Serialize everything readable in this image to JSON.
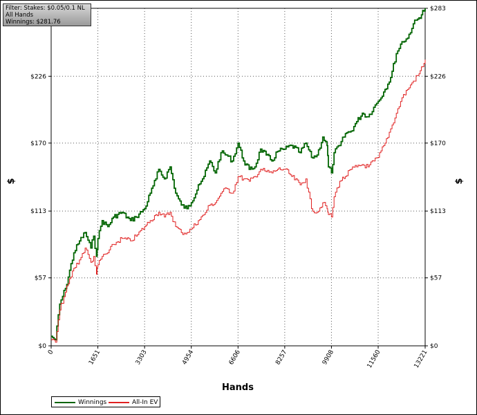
{
  "filter_box": {
    "line1": "Filter: Stakes: $0.05/0.1 NL",
    "line2": "All Hands",
    "line3": "Winnings: $281.76"
  },
  "chart_data": {
    "type": "line",
    "xlabel": "Hands",
    "ylabel": "$",
    "xlim": [
      0,
      13221
    ],
    "ylim": [
      0,
      283
    ],
    "x_ticks": [
      0,
      1651,
      3303,
      4954,
      6606,
      8257,
      9908,
      11560,
      13221
    ],
    "x_tick_labels": [
      "0",
      "1651",
      "3303",
      "4954",
      "6606",
      "8257",
      "9908",
      "11560",
      "13221"
    ],
    "y_ticks": [
      0,
      57,
      113,
      170,
      226,
      283
    ],
    "y_tick_labels": [
      "$0",
      "$57",
      "$113",
      "$170",
      "$226",
      "$283"
    ],
    "grid": true,
    "legend_position": "bottom-left",
    "series": [
      {
        "name": "Winnings",
        "color": "#006400",
        "x": [
          0,
          150,
          300,
          500,
          800,
          1000,
          1200,
          1400,
          1500,
          1600,
          1651,
          1800,
          2000,
          2200,
          2500,
          2800,
          3000,
          3303,
          3500,
          3700,
          3800,
          4000,
          4200,
          4400,
          4600,
          4800,
          4954,
          5200,
          5400,
          5600,
          5800,
          6000,
          6200,
          6400,
          6606,
          6800,
          7000,
          7200,
          7400,
          7600,
          7800,
          8000,
          8257,
          8500,
          8800,
          9000,
          9200,
          9400,
          9600,
          9750,
          9800,
          9908,
          10000,
          10200,
          10400,
          10600,
          10800,
          11000,
          11200,
          11400,
          11560,
          11800,
          12000,
          12200,
          12400,
          12600,
          12800,
          13000,
          13221
        ],
        "values": [
          8,
          5,
          35,
          48,
          78,
          88,
          95,
          82,
          92,
          75,
          90,
          105,
          100,
          108,
          112,
          105,
          108,
          115,
          128,
          140,
          148,
          140,
          150,
          128,
          118,
          115,
          120,
          135,
          142,
          155,
          145,
          162,
          160,
          155,
          170,
          155,
          148,
          150,
          165,
          160,
          155,
          163,
          165,
          168,
          162,
          170,
          158,
          160,
          175,
          168,
          150,
          145,
          162,
          168,
          178,
          180,
          188,
          195,
          192,
          200,
          205,
          215,
          225,
          245,
          255,
          258,
          270,
          275,
          283
        ]
      },
      {
        "name": "All-In EV",
        "color": "#e02020",
        "x": [
          0,
          150,
          300,
          500,
          800,
          1000,
          1200,
          1400,
          1500,
          1600,
          1651,
          1800,
          2000,
          2200,
          2500,
          2800,
          3000,
          3303,
          3500,
          3700,
          3800,
          4000,
          4200,
          4400,
          4600,
          4800,
          4954,
          5200,
          5400,
          5600,
          5800,
          6000,
          6200,
          6400,
          6606,
          6800,
          7000,
          7200,
          7400,
          7600,
          7800,
          8000,
          8257,
          8500,
          8800,
          9000,
          9200,
          9400,
          9600,
          9750,
          9800,
          9908,
          10000,
          10200,
          10400,
          10600,
          10800,
          11000,
          11200,
          11400,
          11560,
          11800,
          12000,
          12200,
          12400,
          12600,
          12800,
          13000,
          13221
        ],
        "values": [
          5,
          3,
          30,
          45,
          65,
          72,
          82,
          70,
          75,
          60,
          68,
          75,
          78,
          85,
          90,
          88,
          92,
          100,
          105,
          110,
          112,
          108,
          112,
          100,
          95,
          95,
          98,
          105,
          110,
          118,
          120,
          128,
          132,
          128,
          142,
          140,
          138,
          142,
          148,
          146,
          145,
          148,
          148,
          142,
          135,
          140,
          115,
          112,
          120,
          115,
          110,
          108,
          125,
          138,
          142,
          148,
          150,
          152,
          150,
          155,
          158,
          170,
          182,
          195,
          208,
          215,
          222,
          228,
          240
        ]
      }
    ]
  }
}
